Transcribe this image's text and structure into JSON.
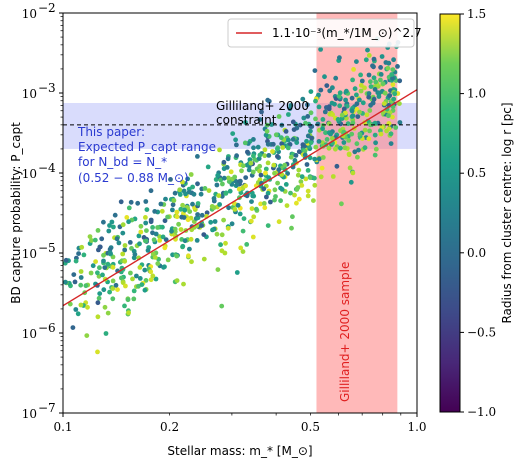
{
  "chart_data": {
    "type": "scatter",
    "xlabel": "Stellar mass: m_* [M_⊙]",
    "ylabel": "BD capture probability: P_capt",
    "xscale": "log",
    "yscale": "log",
    "xlim": [
      0.1,
      1.0
    ],
    "ylim": [
      1e-07,
      0.01
    ],
    "x_tick_labels": [
      {
        "value": 0.1,
        "label": "0.1"
      },
      {
        "value": 0.2,
        "label": "0.2"
      },
      {
        "value": 0.5,
        "label": "0.5"
      },
      {
        "value": 1.0,
        "label": "1.0"
      }
    ],
    "y_tick_labels": [
      {
        "value": 1e-07,
        "label": "10",
        "exp": "−7"
      },
      {
        "value": 1e-06,
        "label": "10",
        "exp": "−6"
      },
      {
        "value": 1e-05,
        "label": "10",
        "exp": "−5"
      },
      {
        "value": 0.0001,
        "label": "10",
        "exp": "−4"
      },
      {
        "value": 0.001,
        "label": "10",
        "exp": "−3"
      },
      {
        "value": 0.01,
        "label": "10",
        "exp": "−2"
      }
    ],
    "fit_line": {
      "coefficient": 0.0011,
      "exponent": 2.7,
      "color": "#d62728",
      "legend_label": "1.1·10⁻³(m_*/1M_⊙)^2.7"
    },
    "legend_position": "top-right",
    "blue_band": {
      "ylim": [
        0.0002,
        0.00075
      ],
      "color": "#5060f0",
      "label_lines": [
        "This paper:",
        "Expected P_capt range",
        "for N_bd = N_*",
        "(0.52 − 0.88 M_⊙)"
      ]
    },
    "red_band": {
      "xlim": [
        0.52,
        0.88
      ],
      "color": "#ff7f7f",
      "label": "Gilliland+ 2000 sample"
    },
    "dashed_line": {
      "y": 0.0004,
      "label_lines": [
        "Gilliland+ 2000",
        "constraint"
      ]
    },
    "colorbar": {
      "label": "Radius from cluster centre: log r [pc]",
      "colormap": "viridis",
      "range": [
        -1.0,
        1.5
      ],
      "tick_labels": [
        {
          "value": -1.0,
          "label": "−1.0"
        },
        {
          "value": -0.5,
          "label": "−0.5"
        },
        {
          "value": 0.0,
          "label": "0.0"
        },
        {
          "value": 0.5,
          "label": "0.5"
        },
        {
          "value": 1.0,
          "label": "1.0"
        },
        {
          "value": 1.5,
          "label": "1.5"
        }
      ]
    },
    "scatter_cloud": {
      "n_points": 900,
      "mass_range": [
        0.1,
        0.9
      ],
      "scatter_dex": 0.32,
      "color_range": [
        -0.3,
        1.45
      ],
      "description_note_not_rendered": ""
    }
  }
}
